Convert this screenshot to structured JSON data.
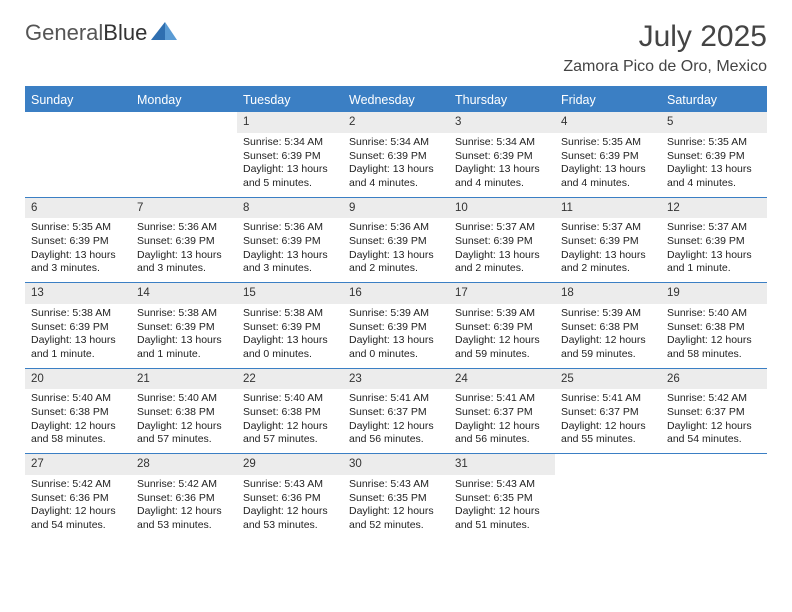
{
  "logo": {
    "part1": "General",
    "part2": "Blue"
  },
  "title": {
    "month": "July 2025",
    "location": "Zamora Pico de Oro, Mexico"
  },
  "colors": {
    "header_bg": "#3b7fc4",
    "header_text": "#ffffff",
    "daynum_bg": "#ececec",
    "border": "#3b7fc4",
    "text": "#222222",
    "background": "#ffffff"
  },
  "dayNames": [
    "Sunday",
    "Monday",
    "Tuesday",
    "Wednesday",
    "Thursday",
    "Friday",
    "Saturday"
  ],
  "weeks": [
    [
      {
        "n": "",
        "sr": "",
        "ss": "",
        "dl": ""
      },
      {
        "n": "",
        "sr": "",
        "ss": "",
        "dl": ""
      },
      {
        "n": "1",
        "sr": "5:34 AM",
        "ss": "6:39 PM",
        "dl": "13 hours and 5 minutes."
      },
      {
        "n": "2",
        "sr": "5:34 AM",
        "ss": "6:39 PM",
        "dl": "13 hours and 4 minutes."
      },
      {
        "n": "3",
        "sr": "5:34 AM",
        "ss": "6:39 PM",
        "dl": "13 hours and 4 minutes."
      },
      {
        "n": "4",
        "sr": "5:35 AM",
        "ss": "6:39 PM",
        "dl": "13 hours and 4 minutes."
      },
      {
        "n": "5",
        "sr": "5:35 AM",
        "ss": "6:39 PM",
        "dl": "13 hours and 4 minutes."
      }
    ],
    [
      {
        "n": "6",
        "sr": "5:35 AM",
        "ss": "6:39 PM",
        "dl": "13 hours and 3 minutes."
      },
      {
        "n": "7",
        "sr": "5:36 AM",
        "ss": "6:39 PM",
        "dl": "13 hours and 3 minutes."
      },
      {
        "n": "8",
        "sr": "5:36 AM",
        "ss": "6:39 PM",
        "dl": "13 hours and 3 minutes."
      },
      {
        "n": "9",
        "sr": "5:36 AM",
        "ss": "6:39 PM",
        "dl": "13 hours and 2 minutes."
      },
      {
        "n": "10",
        "sr": "5:37 AM",
        "ss": "6:39 PM",
        "dl": "13 hours and 2 minutes."
      },
      {
        "n": "11",
        "sr": "5:37 AM",
        "ss": "6:39 PM",
        "dl": "13 hours and 2 minutes."
      },
      {
        "n": "12",
        "sr": "5:37 AM",
        "ss": "6:39 PM",
        "dl": "13 hours and 1 minute."
      }
    ],
    [
      {
        "n": "13",
        "sr": "5:38 AM",
        "ss": "6:39 PM",
        "dl": "13 hours and 1 minute."
      },
      {
        "n": "14",
        "sr": "5:38 AM",
        "ss": "6:39 PM",
        "dl": "13 hours and 1 minute."
      },
      {
        "n": "15",
        "sr": "5:38 AM",
        "ss": "6:39 PM",
        "dl": "13 hours and 0 minutes."
      },
      {
        "n": "16",
        "sr": "5:39 AM",
        "ss": "6:39 PM",
        "dl": "13 hours and 0 minutes."
      },
      {
        "n": "17",
        "sr": "5:39 AM",
        "ss": "6:39 PM",
        "dl": "12 hours and 59 minutes."
      },
      {
        "n": "18",
        "sr": "5:39 AM",
        "ss": "6:38 PM",
        "dl": "12 hours and 59 minutes."
      },
      {
        "n": "19",
        "sr": "5:40 AM",
        "ss": "6:38 PM",
        "dl": "12 hours and 58 minutes."
      }
    ],
    [
      {
        "n": "20",
        "sr": "5:40 AM",
        "ss": "6:38 PM",
        "dl": "12 hours and 58 minutes."
      },
      {
        "n": "21",
        "sr": "5:40 AM",
        "ss": "6:38 PM",
        "dl": "12 hours and 57 minutes."
      },
      {
        "n": "22",
        "sr": "5:40 AM",
        "ss": "6:38 PM",
        "dl": "12 hours and 57 minutes."
      },
      {
        "n": "23",
        "sr": "5:41 AM",
        "ss": "6:37 PM",
        "dl": "12 hours and 56 minutes."
      },
      {
        "n": "24",
        "sr": "5:41 AM",
        "ss": "6:37 PM",
        "dl": "12 hours and 56 minutes."
      },
      {
        "n": "25",
        "sr": "5:41 AM",
        "ss": "6:37 PM",
        "dl": "12 hours and 55 minutes."
      },
      {
        "n": "26",
        "sr": "5:42 AM",
        "ss": "6:37 PM",
        "dl": "12 hours and 54 minutes."
      }
    ],
    [
      {
        "n": "27",
        "sr": "5:42 AM",
        "ss": "6:36 PM",
        "dl": "12 hours and 54 minutes."
      },
      {
        "n": "28",
        "sr": "5:42 AM",
        "ss": "6:36 PM",
        "dl": "12 hours and 53 minutes."
      },
      {
        "n": "29",
        "sr": "5:43 AM",
        "ss": "6:36 PM",
        "dl": "12 hours and 53 minutes."
      },
      {
        "n": "30",
        "sr": "5:43 AM",
        "ss": "6:35 PM",
        "dl": "12 hours and 52 minutes."
      },
      {
        "n": "31",
        "sr": "5:43 AM",
        "ss": "6:35 PM",
        "dl": "12 hours and 51 minutes."
      },
      {
        "n": "",
        "sr": "",
        "ss": "",
        "dl": ""
      },
      {
        "n": "",
        "sr": "",
        "ss": "",
        "dl": ""
      }
    ]
  ],
  "labels": {
    "sunrise": "Sunrise:",
    "sunset": "Sunset:",
    "daylight": "Daylight:"
  }
}
